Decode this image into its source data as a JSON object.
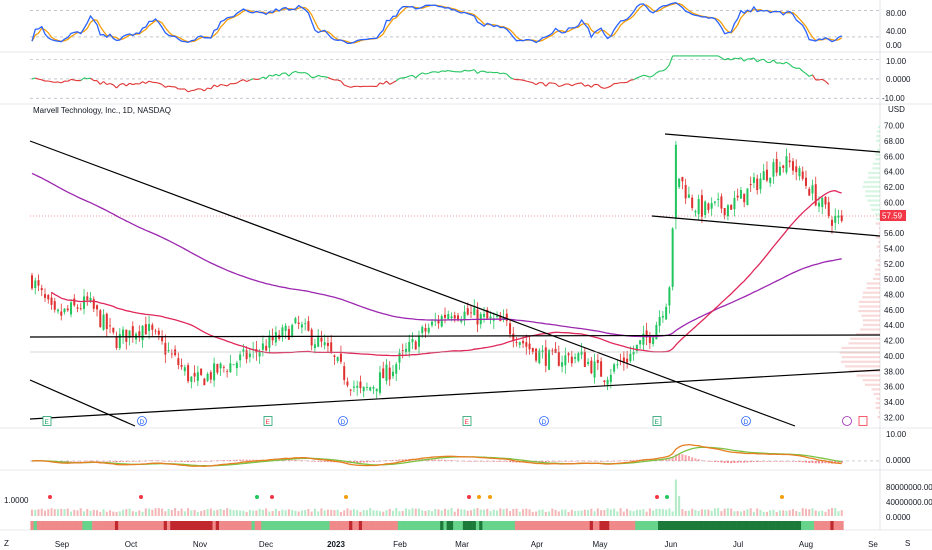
{
  "header": {
    "title": "Marvell Technology, Inc., 1D, NASDAQ",
    "currency": "USD",
    "last_price": "57.59",
    "volume_label": "1.0000",
    "bottom_left": "Z",
    "bottom_right": "S"
  },
  "colors": {
    "up": "#22c55e",
    "down": "#e03131",
    "sma50": "#e0285a",
    "sma200": "#9c27b0",
    "macd": "#e67e22",
    "signal": "#7cc242",
    "stoch_k": "#2962ff",
    "stoch_d": "#f59e0b",
    "price_tag": "#f23645",
    "trendline": "#000000"
  },
  "chart_data": {
    "type": "candlestick",
    "symbol": "Marvell Technology, Inc.",
    "interval": "1D",
    "exchange": "NASDAQ",
    "x_tick_labels": [
      "Sep",
      "Oct",
      "Nov",
      "Dec",
      "2023",
      "Feb",
      "Mar",
      "Apr",
      "May",
      "Jun",
      "Jul",
      "Aug",
      "Se"
    ],
    "price_axis": {
      "ticks": [
        "70.00",
        "68.00",
        "66.00",
        "64.00",
        "62.00",
        "60.00",
        "58.00",
        "56.00",
        "54.00",
        "52.00",
        "50.00",
        "48.00",
        "46.00",
        "44.00",
        "42.00",
        "40.00",
        "38.00",
        "36.00",
        "34.00",
        "32.00"
      ],
      "ylim": [
        31,
        71
      ]
    },
    "stoch_axis": {
      "ticks": [
        "80.00",
        "40.00",
        "0.00"
      ],
      "ylim": [
        -10,
        100
      ]
    },
    "osc_axis": {
      "ticks": [
        "10.00",
        "0.0000",
        "-10.00"
      ],
      "ylim": [
        -12,
        13
      ]
    },
    "macd_axis": {
      "ticks": [
        "10.00",
        "0.0000"
      ],
      "ylim": [
        -2.5,
        11
      ]
    },
    "volume_axis": {
      "ticks": [
        "80000000.00",
        "40000000.00",
        "0.0000"
      ],
      "ylim": [
        0,
        90000000
      ]
    },
    "event_markers": [
      "E",
      "D",
      "E",
      "D",
      "E",
      "D",
      "E",
      "D"
    ],
    "monthly_closes": [
      {
        "month": "Sep",
        "close": 46.0
      },
      {
        "month": "Oct",
        "close": 40.5
      },
      {
        "month": "Nov",
        "close": 39.0
      },
      {
        "month": "Dec",
        "close": 38.5
      },
      {
        "month": "Jan",
        "close": 44.0
      },
      {
        "month": "Feb",
        "close": 44.0
      },
      {
        "month": "Mar",
        "close": 40.5
      },
      {
        "month": "Apr",
        "close": 39.5
      },
      {
        "month": "May",
        "close": 49.0
      },
      {
        "month": "Jun",
        "close": 59.0
      },
      {
        "month": "Jul",
        "close": 65.0
      },
      {
        "month": "Aug",
        "close": 57.59
      }
    ],
    "last_close": 57.59,
    "grid": true,
    "legend": "none"
  }
}
